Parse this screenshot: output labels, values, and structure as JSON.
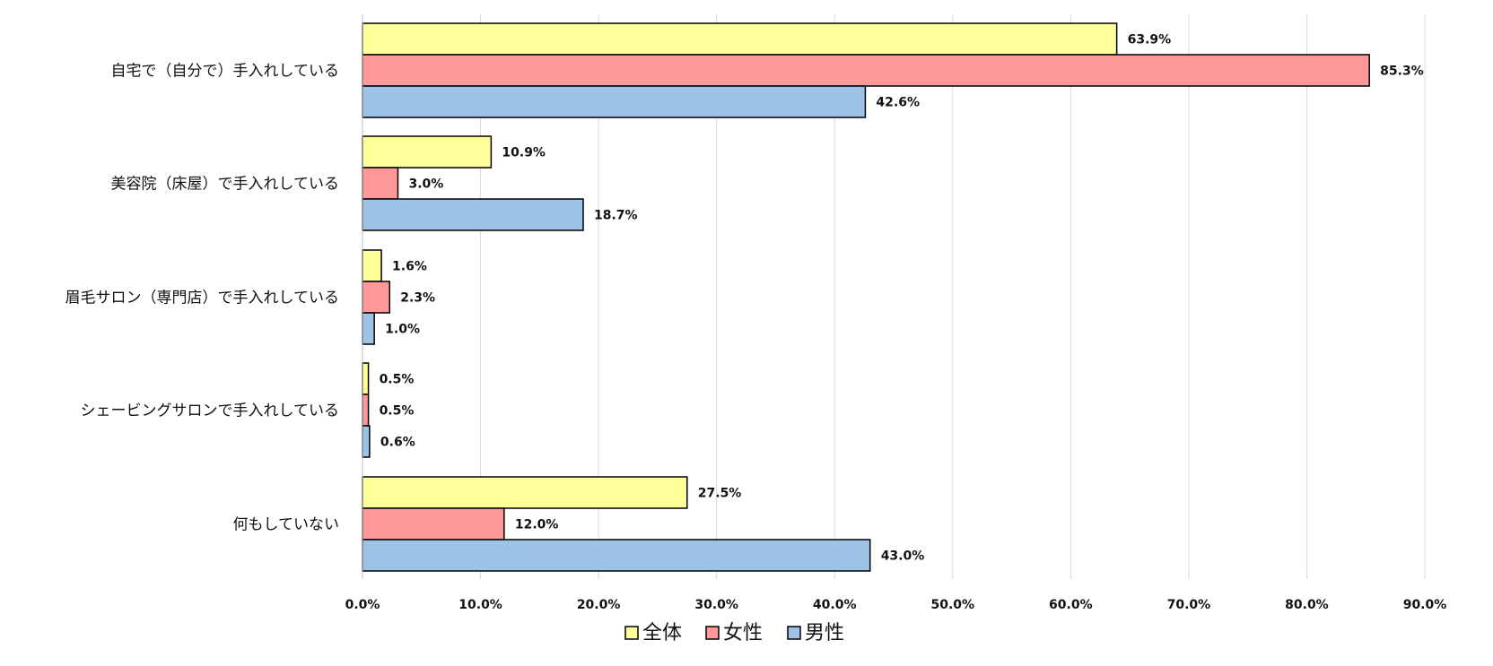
{
  "chart_data": {
    "type": "bar",
    "orientation": "horizontal",
    "categories": [
      "自宅で（自分で）手入れしている",
      "美容院（床屋）で手入れしている",
      "眉毛サロン（専門店）で手入れしている",
      "シェービングサロンで手入れしている",
      "何もしていない"
    ],
    "series": [
      {
        "name": "全体",
        "color": "#FFFF99",
        "values": [
          63.9,
          10.9,
          1.6,
          0.5,
          27.5
        ],
        "labels": [
          "63.9%",
          "10.9%",
          "1.6%",
          "0.5%",
          "27.5%"
        ]
      },
      {
        "name": "女性",
        "color": "#FF9999",
        "values": [
          85.3,
          3.0,
          2.3,
          0.5,
          12.0
        ],
        "labels": [
          "85.3%",
          "3.0%",
          "2.3%",
          "0.5%",
          "12.0%"
        ]
      },
      {
        "name": "男性",
        "color": "#9DC3E6",
        "values": [
          42.6,
          18.7,
          1.0,
          0.6,
          43.0
        ],
        "labels": [
          "42.6%",
          "18.7%",
          "1.0%",
          "0.6%",
          "43.0%"
        ]
      }
    ],
    "xlim": [
      0,
      90
    ],
    "xticks": [
      0,
      10,
      20,
      30,
      40,
      50,
      60,
      70,
      80,
      90
    ],
    "xtick_labels": [
      "0.0%",
      "10.0%",
      "20.0%",
      "30.0%",
      "40.0%",
      "50.0%",
      "60.0%",
      "70.0%",
      "80.0%",
      "90.0%"
    ],
    "grid": true,
    "legend_position": "bottom",
    "title": "",
    "xlabel": "",
    "ylabel": ""
  }
}
